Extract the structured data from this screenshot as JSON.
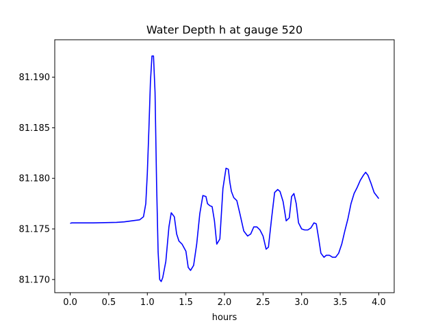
{
  "chart_data": {
    "type": "line",
    "title": "Water Depth h at gauge 520",
    "xlabel": "hours",
    "ylabel": "",
    "xlim": [
      -0.2,
      4.2
    ],
    "ylim": [
      81.1687,
      81.1937
    ],
    "xticks": [
      0.0,
      0.5,
      1.0,
      1.5,
      2.0,
      2.5,
      3.0,
      3.5,
      4.0
    ],
    "xtick_labels": [
      "0.0",
      "0.5",
      "1.0",
      "1.5",
      "2.0",
      "2.5",
      "3.0",
      "3.5",
      "4.0"
    ],
    "yticks": [
      81.17,
      81.175,
      81.18,
      81.185,
      81.19
    ],
    "ytick_labels": [
      "81.170",
      "81.175",
      "81.180",
      "81.185",
      "81.190"
    ],
    "grid": false,
    "series": [
      {
        "color": "#0000ff",
        "x": [
          0.0,
          0.02,
          0.3,
          0.6,
          0.7,
          0.8,
          0.9,
          0.95,
          0.98,
          1.0,
          1.02,
          1.04,
          1.06,
          1.08,
          1.1,
          1.12,
          1.14,
          1.16,
          1.18,
          1.2,
          1.24,
          1.28,
          1.31,
          1.35,
          1.38,
          1.41,
          1.45,
          1.5,
          1.53,
          1.56,
          1.6,
          1.64,
          1.68,
          1.72,
          1.76,
          1.78,
          1.81,
          1.84,
          1.87,
          1.9,
          1.94,
          1.98,
          2.02,
          2.05,
          2.07,
          2.09,
          2.12,
          2.16,
          2.2,
          2.25,
          2.3,
          2.34,
          2.38,
          2.42,
          2.46,
          2.5,
          2.54,
          2.57,
          2.61,
          2.65,
          2.69,
          2.72,
          2.76,
          2.8,
          2.84,
          2.87,
          2.9,
          2.93,
          2.96,
          3.0,
          3.04,
          3.08,
          3.12,
          3.16,
          3.19,
          3.22,
          3.25,
          3.29,
          3.32,
          3.36,
          3.4,
          3.44,
          3.48,
          3.52,
          3.56,
          3.6,
          3.64,
          3.68,
          3.72,
          3.76,
          3.8,
          3.83,
          3.86,
          3.9,
          3.94,
          4.0
        ],
        "y": [
          81.17555,
          81.1756,
          81.1756,
          81.17565,
          81.1757,
          81.1758,
          81.1759,
          81.1762,
          81.1775,
          81.1805,
          81.1848,
          81.1895,
          81.1921,
          81.1921,
          81.1885,
          81.1795,
          81.1727,
          81.17,
          81.1698,
          81.1702,
          81.1718,
          81.1752,
          81.1766,
          81.1762,
          81.1745,
          81.1738,
          81.1735,
          81.1728,
          81.1712,
          81.1709,
          81.1714,
          81.1735,
          81.1765,
          81.1783,
          81.1782,
          81.1775,
          81.1773,
          81.1772,
          81.1758,
          81.1735,
          81.174,
          81.179,
          81.181,
          81.1809,
          81.1796,
          81.1787,
          81.1781,
          81.1778,
          81.1765,
          81.1748,
          81.1743,
          81.1745,
          81.1752,
          81.1752,
          81.1749,
          81.1743,
          81.173,
          81.1732,
          81.176,
          81.1786,
          81.1789,
          81.1787,
          81.1777,
          81.1758,
          81.1761,
          81.1782,
          81.1785,
          81.1775,
          81.1756,
          81.175,
          81.1749,
          81.1749,
          81.1751,
          81.1756,
          81.1755,
          81.1741,
          81.1726,
          81.1722,
          81.1724,
          81.1724,
          81.1722,
          81.1722,
          81.1726,
          81.1735,
          81.1748,
          81.176,
          81.1775,
          81.1785,
          81.1791,
          81.1798,
          81.1803,
          81.1806,
          81.1803,
          81.1795,
          81.1786,
          81.178
        ]
      }
    ]
  }
}
